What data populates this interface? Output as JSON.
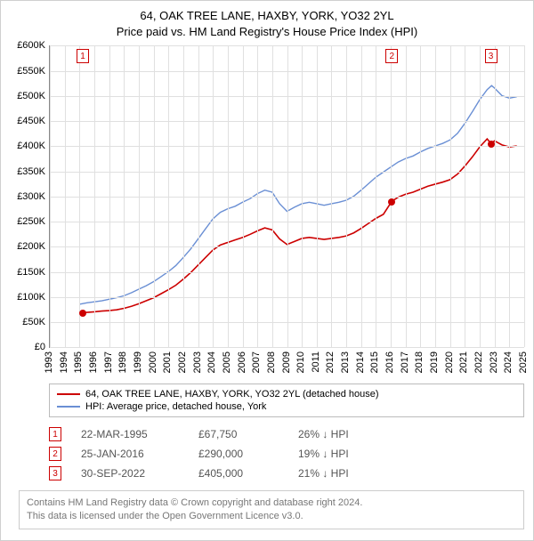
{
  "title_line1": "64, OAK TREE LANE, HAXBY, YORK, YO32 2YL",
  "title_line2": "Price paid vs. HM Land Registry's House Price Index (HPI)",
  "chart": {
    "type": "line",
    "background_color": "#ffffff",
    "grid_color": "#e0e0e0",
    "axis_color": "#888888",
    "label_fontsize": 11,
    "title_fontsize": 13,
    "x_min_year": 1993,
    "x_max_year": 2025,
    "x_ticks": [
      1993,
      1994,
      1995,
      1996,
      1997,
      1998,
      1999,
      2000,
      2001,
      2002,
      2003,
      2004,
      2005,
      2006,
      2007,
      2008,
      2009,
      2010,
      2011,
      2012,
      2013,
      2014,
      2015,
      2016,
      2017,
      2018,
      2019,
      2020,
      2021,
      2022,
      2023,
      2024,
      2025
    ],
    "y_min": 0,
    "y_max": 600000,
    "y_tick_step": 50000,
    "y_tick_labels": [
      "£0",
      "£50K",
      "£100K",
      "£150K",
      "£200K",
      "£250K",
      "£300K",
      "£350K",
      "£400K",
      "£450K",
      "£500K",
      "£550K",
      "£600K"
    ],
    "series": [
      {
        "name": "HPI: Average price, detached house, York",
        "color": "#6a8fd4",
        "line_width": 1.4,
        "points": [
          [
            1995.0,
            85000
          ],
          [
            1995.5,
            88000
          ],
          [
            1996.0,
            90000
          ],
          [
            1996.5,
            92000
          ],
          [
            1997.0,
            95000
          ],
          [
            1997.5,
            98000
          ],
          [
            1998.0,
            102000
          ],
          [
            1998.5,
            108000
          ],
          [
            1999.0,
            115000
          ],
          [
            1999.5,
            122000
          ],
          [
            2000.0,
            130000
          ],
          [
            2000.5,
            140000
          ],
          [
            2001.0,
            150000
          ],
          [
            2001.5,
            162000
          ],
          [
            2002.0,
            178000
          ],
          [
            2002.5,
            195000
          ],
          [
            2003.0,
            215000
          ],
          [
            2003.5,
            235000
          ],
          [
            2004.0,
            255000
          ],
          [
            2004.5,
            268000
          ],
          [
            2005.0,
            275000
          ],
          [
            2005.5,
            280000
          ],
          [
            2006.0,
            288000
          ],
          [
            2006.5,
            295000
          ],
          [
            2007.0,
            305000
          ],
          [
            2007.5,
            312000
          ],
          [
            2008.0,
            308000
          ],
          [
            2008.5,
            285000
          ],
          [
            2009.0,
            270000
          ],
          [
            2009.5,
            278000
          ],
          [
            2010.0,
            285000
          ],
          [
            2010.5,
            288000
          ],
          [
            2011.0,
            285000
          ],
          [
            2011.5,
            282000
          ],
          [
            2012.0,
            285000
          ],
          [
            2012.5,
            288000
          ],
          [
            2013.0,
            292000
          ],
          [
            2013.5,
            300000
          ],
          [
            2014.0,
            312000
          ],
          [
            2014.5,
            325000
          ],
          [
            2015.0,
            338000
          ],
          [
            2015.5,
            348000
          ],
          [
            2016.0,
            358000
          ],
          [
            2016.5,
            368000
          ],
          [
            2017.0,
            375000
          ],
          [
            2017.5,
            380000
          ],
          [
            2018.0,
            388000
          ],
          [
            2018.5,
            395000
          ],
          [
            2019.0,
            400000
          ],
          [
            2019.5,
            405000
          ],
          [
            2020.0,
            412000
          ],
          [
            2020.5,
            425000
          ],
          [
            2021.0,
            445000
          ],
          [
            2021.5,
            468000
          ],
          [
            2022.0,
            492000
          ],
          [
            2022.5,
            512000
          ],
          [
            2022.8,
            520000
          ],
          [
            2023.0,
            515000
          ],
          [
            2023.5,
            500000
          ],
          [
            2024.0,
            495000
          ],
          [
            2024.5,
            498000
          ]
        ]
      },
      {
        "name": "64, OAK TREE LANE, HAXBY, YORK, YO32 2YL (detached house)",
        "color": "#cc0000",
        "line_width": 1.6,
        "points": [
          [
            1995.22,
            67750
          ],
          [
            1995.5,
            69000
          ],
          [
            1996.0,
            70000
          ],
          [
            1996.5,
            71500
          ],
          [
            1997.0,
            72500
          ],
          [
            1997.5,
            74000
          ],
          [
            1998.0,
            77000
          ],
          [
            1998.5,
            81000
          ],
          [
            1999.0,
            86000
          ],
          [
            1999.5,
            92000
          ],
          [
            2000.0,
            98000
          ],
          [
            2000.5,
            106000
          ],
          [
            2001.0,
            114000
          ],
          [
            2001.5,
            123000
          ],
          [
            2002.0,
            135000
          ],
          [
            2002.5,
            148000
          ],
          [
            2003.0,
            163000
          ],
          [
            2003.5,
            178000
          ],
          [
            2004.0,
            193000
          ],
          [
            2004.5,
            203000
          ],
          [
            2005.0,
            208000
          ],
          [
            2005.5,
            213000
          ],
          [
            2006.0,
            218000
          ],
          [
            2006.5,
            224000
          ],
          [
            2007.0,
            231000
          ],
          [
            2007.5,
            237000
          ],
          [
            2008.0,
            233000
          ],
          [
            2008.5,
            215000
          ],
          [
            2009.0,
            204000
          ],
          [
            2009.5,
            210000
          ],
          [
            2010.0,
            216000
          ],
          [
            2010.5,
            218000
          ],
          [
            2011.0,
            216000
          ],
          [
            2011.5,
            214000
          ],
          [
            2012.0,
            216000
          ],
          [
            2012.5,
            218000
          ],
          [
            2013.0,
            221000
          ],
          [
            2013.5,
            227000
          ],
          [
            2014.0,
            236000
          ],
          [
            2014.5,
            246000
          ],
          [
            2015.0,
            256000
          ],
          [
            2015.5,
            264000
          ],
          [
            2016.07,
            290000
          ],
          [
            2016.5,
            298000
          ],
          [
            2017.0,
            304000
          ],
          [
            2017.5,
            308000
          ],
          [
            2018.0,
            314000
          ],
          [
            2018.5,
            320000
          ],
          [
            2019.0,
            324000
          ],
          [
            2019.5,
            328000
          ],
          [
            2020.0,
            333000
          ],
          [
            2020.5,
            344000
          ],
          [
            2021.0,
            360000
          ],
          [
            2021.5,
            378000
          ],
          [
            2022.0,
            398000
          ],
          [
            2022.5,
            414000
          ],
          [
            2022.75,
            405000
          ],
          [
            2023.0,
            410000
          ],
          [
            2023.5,
            402000
          ],
          [
            2024.0,
            398000
          ],
          [
            2024.5,
            400000
          ]
        ]
      }
    ],
    "markers": [
      {
        "label": "1",
        "year": 1995.22
      },
      {
        "label": "2",
        "year": 2016.07
      },
      {
        "label": "3",
        "year": 2022.75
      }
    ],
    "sale_dots": [
      {
        "year": 1995.22,
        "value": 67750
      },
      {
        "year": 2016.07,
        "value": 290000
      },
      {
        "year": 2022.75,
        "value": 405000
      }
    ]
  },
  "legend": {
    "items": [
      {
        "color": "#cc0000",
        "label": "64, OAK TREE LANE, HAXBY, YORK, YO32 2YL (detached house)"
      },
      {
        "color": "#6a8fd4",
        "label": "HPI: Average price, detached house, York"
      }
    ]
  },
  "sales": [
    {
      "num": "1",
      "date": "22-MAR-1995",
      "price": "£67,750",
      "delta": "26% ↓ HPI"
    },
    {
      "num": "2",
      "date": "25-JAN-2016",
      "price": "£290,000",
      "delta": "19% ↓ HPI"
    },
    {
      "num": "3",
      "date": "30-SEP-2022",
      "price": "£405,000",
      "delta": "21% ↓ HPI"
    }
  ],
  "footer_line1": "Contains HM Land Registry data © Crown copyright and database right 2024.",
  "footer_line2": "This data is licensed under the Open Government Licence v3.0."
}
